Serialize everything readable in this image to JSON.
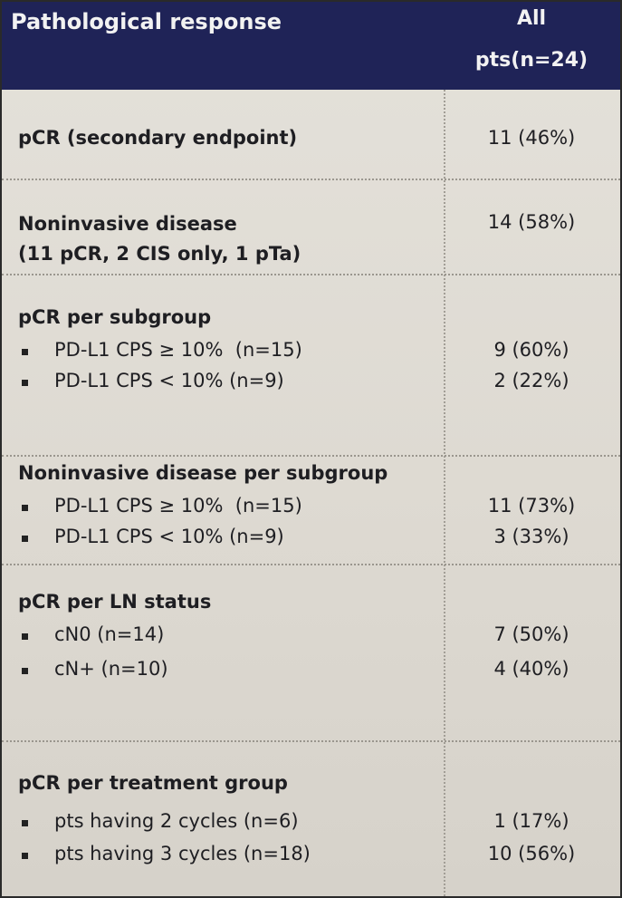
{
  "header": {
    "label": "Pathological response",
    "value_lines": [
      "All",
      "pts(n=24)"
    ]
  },
  "rows": [
    {
      "label_lines": [
        "pCR (secondary endpoint)"
      ],
      "value": "11 (46%)"
    },
    {
      "label_lines": [
        "Noninvasive disease",
        "(11 pCR, 2 CIS only, 1 pTa)"
      ],
      "value": "14 (58%)"
    },
    {
      "label_lines": [
        "pCR per subgroup"
      ],
      "items": [
        {
          "label": "PD-L1 CPS ≥ 10%  (n=15)",
          "value": "9 (60%)"
        },
        {
          "label": "PD-L1 CPS < 10% (n=9)",
          "value": "2 (22%)"
        }
      ]
    },
    {
      "label_lines": [
        "Noninvasive disease per subgroup"
      ],
      "items": [
        {
          "label": "PD-L1 CPS ≥ 10%  (n=15)",
          "value": "11 (73%)"
        },
        {
          "label": "PD-L1 CPS < 10% (n=9)",
          "value": "3 (33%)"
        }
      ]
    },
    {
      "label_lines": [
        "pCR per LN status"
      ],
      "items": [
        {
          "label": "cN0 (n=14)",
          "value": "7 (50%)"
        },
        {
          "label": "cN+ (n=10)",
          "value": "4 (40%)"
        }
      ]
    },
    {
      "label_lines": [
        "pCR per treatment group"
      ],
      "items": [
        {
          "label": "pts having 2 cycles (n=6)",
          "value": "1 (17%)"
        },
        {
          "label": "pts having 3 cycles (n=18)",
          "value": "10 (56%)"
        }
      ]
    }
  ]
}
